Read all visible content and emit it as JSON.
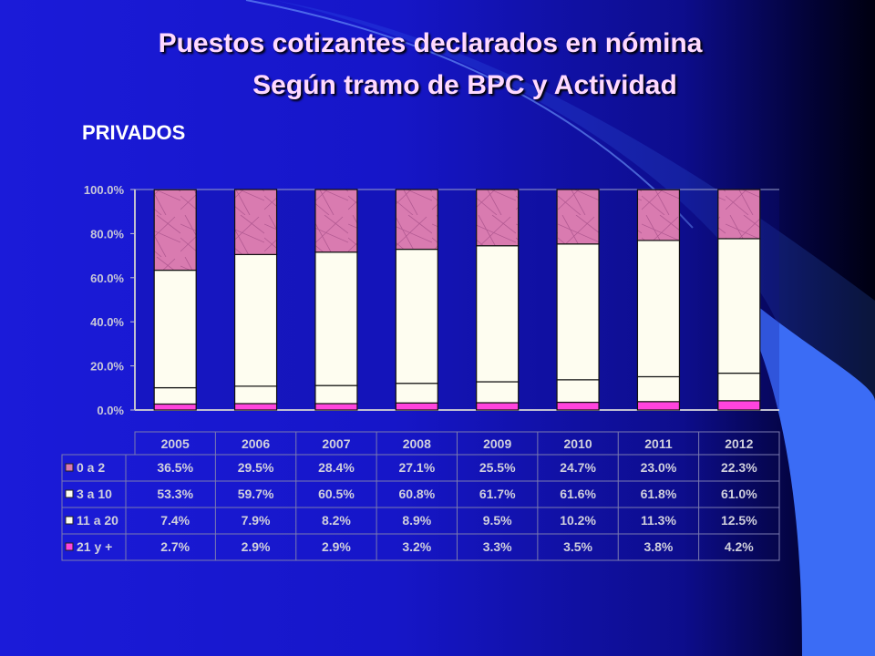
{
  "slide": {
    "title_line1": "Puestos cotizantes declarados en nómina",
    "title_line2": "Según tramo de BPC y Actividad",
    "subtitle": "PRIVADOS"
  },
  "colors": {
    "series_0a2": "#d97bb0",
    "series_3a10": "#fefdf0",
    "series_11a20": "#fefdf0",
    "series_21mas": "#ff44dd",
    "axis_text": "#c8c8d8"
  },
  "chart_data": {
    "type": "bar",
    "stacked": true,
    "title": "",
    "xlabel": "",
    "ylabel": "",
    "ylim": [
      0,
      100
    ],
    "yticks": [
      "0.0%",
      "20.0%",
      "40.0%",
      "60.0%",
      "80.0%",
      "100.0%"
    ],
    "categories": [
      "2005",
      "2006",
      "2007",
      "2008",
      "2009",
      "2010",
      "2011",
      "2012"
    ],
    "series": [
      {
        "name": "21 y +",
        "values": [
          2.7,
          2.9,
          2.9,
          3.2,
          3.3,
          3.5,
          3.8,
          4.2
        ],
        "labels": [
          "2.7%",
          "2.9%",
          "2.9%",
          "3.2%",
          "3.3%",
          "3.5%",
          "3.8%",
          "4.2%"
        ]
      },
      {
        "name": "11 a 20",
        "values": [
          7.4,
          7.9,
          8.2,
          8.9,
          9.5,
          10.2,
          11.3,
          12.5
        ],
        "labels": [
          "7.4%",
          "7.9%",
          "8.2%",
          "8.9%",
          "9.5%",
          "10.2%",
          "11.3%",
          "12.5%"
        ]
      },
      {
        "name": "3 a 10",
        "values": [
          53.3,
          59.7,
          60.5,
          60.8,
          61.7,
          61.6,
          61.8,
          61.0
        ],
        "labels": [
          "53.3%",
          "59.7%",
          "60.5%",
          "60.8%",
          "61.7%",
          "61.6%",
          "61.8%",
          "61.0%"
        ]
      },
      {
        "name": "0 a 2",
        "values": [
          36.5,
          29.5,
          28.4,
          27.1,
          25.5,
          24.7,
          23.0,
          22.3
        ],
        "labels": [
          "36.5%",
          "29.5%",
          "28.4%",
          "27.1%",
          "25.5%",
          "24.7%",
          "23.0%",
          "22.3%"
        ]
      }
    ],
    "table_row_order": [
      "0 a 2",
      "3 a 10",
      "11 a 20",
      "21 y +"
    ],
    "legend": "data-table"
  }
}
